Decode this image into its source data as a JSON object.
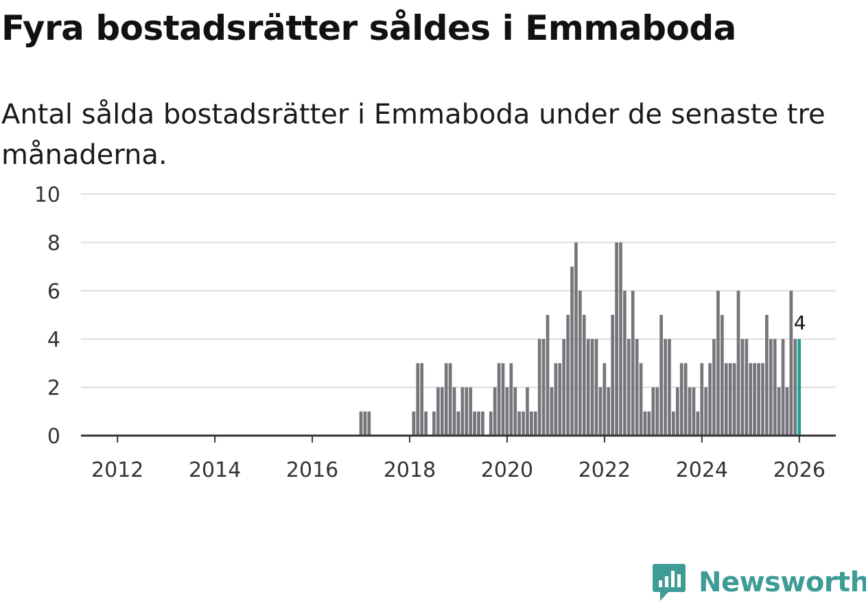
{
  "title": "Fyra bostadsrätter såldes i Emmaboda",
  "subtitle": "Antal sålda bostadsrätter i Emmaboda under de senaste tre månaderna.",
  "brand": {
    "name": "Newsworthy",
    "color": "#3e9c97",
    "icon": "newsworthy-logo-icon"
  },
  "colors": {
    "bar": "#76757b",
    "highlight": "#1a9e96",
    "grid": "#dddddd",
    "axis": "#333333"
  },
  "chart_data": {
    "type": "bar",
    "title": "Fyra bostadsrätter såldes i Emmaboda",
    "xlabel": "",
    "ylabel": "",
    "ylim": [
      0,
      10
    ],
    "yticks": [
      0,
      2,
      4,
      6,
      8,
      10
    ],
    "xlim": [
      2011.25,
      2026.75
    ],
    "xticks": [
      2012,
      2014,
      2016,
      2018,
      2020,
      2022,
      2024,
      2026
    ],
    "grid": true,
    "series": [
      {
        "name": "Sålda bostadsrätter",
        "start": 2011.333,
        "step": 0.08333,
        "values": [
          0,
          0,
          0,
          0,
          0,
          0,
          0,
          0,
          0,
          0,
          0,
          0,
          0,
          0,
          0,
          0,
          0,
          0,
          0,
          0,
          0,
          0,
          0,
          0,
          0,
          0,
          0,
          0,
          0,
          0,
          0,
          0,
          0,
          0,
          0,
          0,
          0,
          0,
          0,
          0,
          0,
          0,
          0,
          0,
          0,
          0,
          0,
          0,
          0,
          0,
          0,
          0,
          0,
          0,
          0,
          0,
          0,
          0,
          0,
          0,
          0,
          0,
          0,
          0,
          0,
          0,
          0,
          0,
          1,
          1,
          1,
          0,
          0,
          0,
          0,
          0,
          0,
          0,
          0,
          0,
          0,
          1,
          3,
          3,
          1,
          0,
          1,
          2,
          2,
          3,
          3,
          2,
          1,
          2,
          2,
          2,
          1,
          1,
          1,
          0,
          1,
          2,
          3,
          3,
          2,
          3,
          2,
          1,
          1,
          2,
          1,
          1,
          4,
          4,
          5,
          2,
          3,
          3,
          4,
          5,
          7,
          8,
          6,
          5,
          4,
          4,
          4,
          2,
          3,
          2,
          5,
          8,
          8,
          6,
          4,
          6,
          4,
          3,
          1,
          1,
          2,
          2,
          5,
          4,
          4,
          1,
          2,
          3,
          3,
          2,
          2,
          1,
          3,
          2,
          3,
          4,
          6,
          5,
          3,
          3,
          3,
          6,
          4,
          4,
          3,
          3,
          3,
          3,
          5,
          4,
          4,
          2,
          4,
          2,
          6,
          4,
          4
        ]
      }
    ],
    "highlight": {
      "label": "4",
      "value": 4,
      "index": 176
    }
  }
}
